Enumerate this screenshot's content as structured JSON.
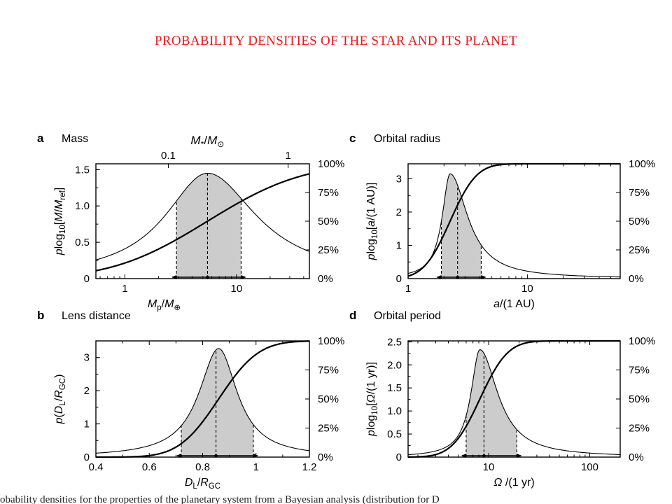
{
  "title": "PROBABILITY DENSITIES OF THE STAR AND ITS PLANET",
  "caption": "obability densities for the properties of the planetary system from a Bayesian analysis (distribution for D",
  "cdf_ticks": [
    "0%",
    "25%",
    "50%",
    "75%",
    "100%"
  ],
  "colors": {
    "shade": "#cccccc",
    "line": "#000000",
    "title": "#e8161b"
  },
  "chart_data": [
    {
      "id": "a",
      "letter": "a",
      "heading": "Mass",
      "type": "line",
      "xscale": "log",
      "xlim": [
        0.55,
        45
      ],
      "ylim": [
        0,
        1.58
      ],
      "xlabel": "Mp/M⊕",
      "ylabel": "plog10[M/Mref]",
      "xticks": [
        1,
        10
      ],
      "xtick_labels": [
        "1",
        "10"
      ],
      "yticks": [
        0,
        0.5,
        1.0,
        1.5
      ],
      "ytick_labels": [
        "0",
        "0.5",
        "1.0",
        "1.5"
      ],
      "top_axis": {
        "label": "M*/M⊙",
        "ticks": [
          2.45,
          29
        ],
        "tick_labels": [
          "0.1",
          "1"
        ]
      },
      "density": {
        "peak_x": 5.5,
        "peak_y": 1.45,
        "sigma_left": 0.52,
        "sigma_right": 0.6
      },
      "shade_range": [
        2.9,
        11.0
      ],
      "median": 5.5,
      "marker_arrows": [
        2.9,
        11.0
      ],
      "cdf": "increasing"
    },
    {
      "id": "b",
      "letter": "b",
      "heading": "Lens distance",
      "type": "line",
      "xscale": "linear",
      "xlim": [
        0.4,
        1.2
      ],
      "ylim": [
        0,
        3.5
      ],
      "xlabel": "DL/RGC",
      "ylabel": "p(DL/RGC)",
      "xticks": [
        0.4,
        0.6,
        0.8,
        1.0,
        1.2
      ],
      "xtick_labels": [
        "0.4",
        "0.6",
        "0.8",
        "1",
        "1.2"
      ],
      "yticks": [
        0,
        1,
        2,
        3
      ],
      "ytick_labels": [
        "0",
        "1",
        "2",
        "3"
      ],
      "density": {
        "peak_x": 0.86,
        "peak_y": 3.27,
        "sigma_left": 0.1,
        "sigma_right": 0.095
      },
      "shade_range": [
        0.72,
        0.99
      ],
      "median": 0.85,
      "marker_arrows": [
        0.72,
        0.99
      ],
      "cdf": "increasing"
    },
    {
      "id": "c",
      "letter": "c",
      "heading": "Orbital radius",
      "type": "line",
      "xscale": "log",
      "xlim": [
        1,
        60
      ],
      "ylim": [
        0,
        3.45
      ],
      "xlabel": "a/(1 AU)",
      "ylabel": "plog10[a/(1 AU)]",
      "xticks": [
        1,
        10
      ],
      "xtick_labels": [
        "1",
        "10"
      ],
      "yticks": [
        0,
        1,
        2,
        3
      ],
      "ytick_labels": [
        "0",
        "1",
        "2",
        "3"
      ],
      "density": {
        "peak_x": 2.25,
        "peak_y": 3.15,
        "sigma_left": 0.09,
        "sigma_right": 0.2
      },
      "shade_range": [
        1.9,
        4.1
      ],
      "median": 2.6,
      "marker_arrows": [
        1.9,
        4.1
      ],
      "cdf": "increasing"
    },
    {
      "id": "d",
      "letter": "d",
      "heading": "Orbital period",
      "type": "line",
      "xscale": "log",
      "xlim": [
        1.6,
        200
      ],
      "ylim": [
        0,
        2.52
      ],
      "xlabel": "Ω/(1 yr)",
      "ylabel": "plog10[Ω/(1 yr)]",
      "xticks": [
        10,
        100
      ],
      "xtick_labels": [
        "10",
        "100"
      ],
      "yticks": [
        0,
        0.5,
        1.0,
        1.5,
        2.0,
        2.5
      ],
      "ytick_labels": [
        "0",
        "0.5",
        "1.0",
        "1.5",
        "2.0",
        "2.5"
      ],
      "density": {
        "peak_x": 8.2,
        "peak_y": 2.33,
        "sigma_left": 0.12,
        "sigma_right": 0.24
      },
      "shade_range": [
        6.0,
        19.0
      ],
      "median": 9.0,
      "marker_arrows": [
        6.0,
        19.0
      ],
      "cdf": "increasing"
    }
  ]
}
